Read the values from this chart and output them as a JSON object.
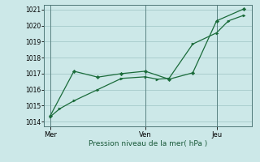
{
  "background_color": "#cce8e8",
  "grid_color": "#aacece",
  "line_color": "#1a6b3a",
  "xlabel": "Pression niveau de la mer( hPa )",
  "ylim": [
    1013.7,
    1021.3
  ],
  "yticks": [
    1014,
    1015,
    1016,
    1017,
    1018,
    1019,
    1020,
    1021
  ],
  "xtick_labels": [
    "Mer",
    "Ven",
    "Jeu"
  ],
  "xtick_positions": [
    0.5,
    8.5,
    14.5
  ],
  "vline_positions": [
    0.5,
    8.5,
    14.5
  ],
  "xlim": [
    0,
    17.5
  ],
  "line1_x": [
    0.5,
    1.3,
    2.5,
    4.5,
    6.5,
    8.5,
    9.5,
    10.5,
    12.5,
    14.5,
    15.5,
    16.8
  ],
  "line1_y": [
    1014.3,
    1014.8,
    1015.3,
    1016.0,
    1016.7,
    1016.8,
    1016.65,
    1016.7,
    1018.85,
    1019.55,
    1020.3,
    1020.65
  ],
  "line2_x": [
    0.5,
    2.5,
    4.5,
    6.5,
    8.5,
    10.5,
    12.5,
    14.5,
    16.8
  ],
  "line2_y": [
    1014.35,
    1017.15,
    1016.78,
    1017.0,
    1017.15,
    1016.65,
    1017.05,
    1020.3,
    1021.05
  ]
}
